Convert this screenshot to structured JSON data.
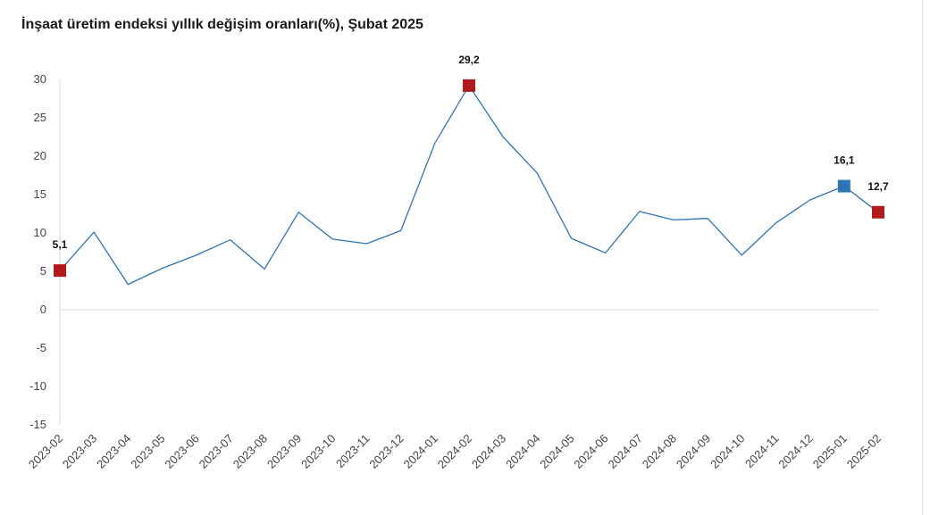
{
  "chart_data": {
    "type": "line",
    "title": "İnşaat üretim endeksi yıllık değişim oranları(%), Şubat 2025",
    "xlabel": "",
    "ylabel": "",
    "categories": [
      "2023-02",
      "2023-03",
      "2023-04",
      "2023-05",
      "2023-06",
      "2023-07",
      "2023-08",
      "2023-09",
      "2023-10",
      "2023-11",
      "2023-12",
      "2024-01",
      "2024-02",
      "2024-03",
      "2024-04",
      "2024-05",
      "2024-06",
      "2024-07",
      "2024-08",
      "2024-09",
      "2024-10",
      "2024-11",
      "2024-12",
      "2025-01",
      "2025-02"
    ],
    "series": [
      {
        "values": [
          5.1,
          10.1,
          3.3,
          5.4,
          7.1,
          9.1,
          5.3,
          12.7,
          9.2,
          8.6,
          10.3,
          21.7,
          29.2,
          22.5,
          17.8,
          9.3,
          7.4,
          12.8,
          11.7,
          11.9,
          7.1,
          11.3,
          14.3,
          16.1,
          12.7
        ],
        "color": "#2e75b6"
      }
    ],
    "ylim": [
      -15,
      30
    ],
    "yticks": [
      30,
      25,
      20,
      15,
      10,
      5,
      0,
      -5,
      -10,
      -15
    ],
    "grid": false,
    "highlighted_points": [
      {
        "index": 0,
        "label": "5,1",
        "color": "#b11a1d"
      },
      {
        "index": 12,
        "label": "29,2",
        "color": "#b11a1d"
      },
      {
        "index": 23,
        "label": "16,1",
        "color": "#2e75b6"
      },
      {
        "index": 24,
        "label": "12,7",
        "color": "#b11a1d"
      }
    ]
  }
}
